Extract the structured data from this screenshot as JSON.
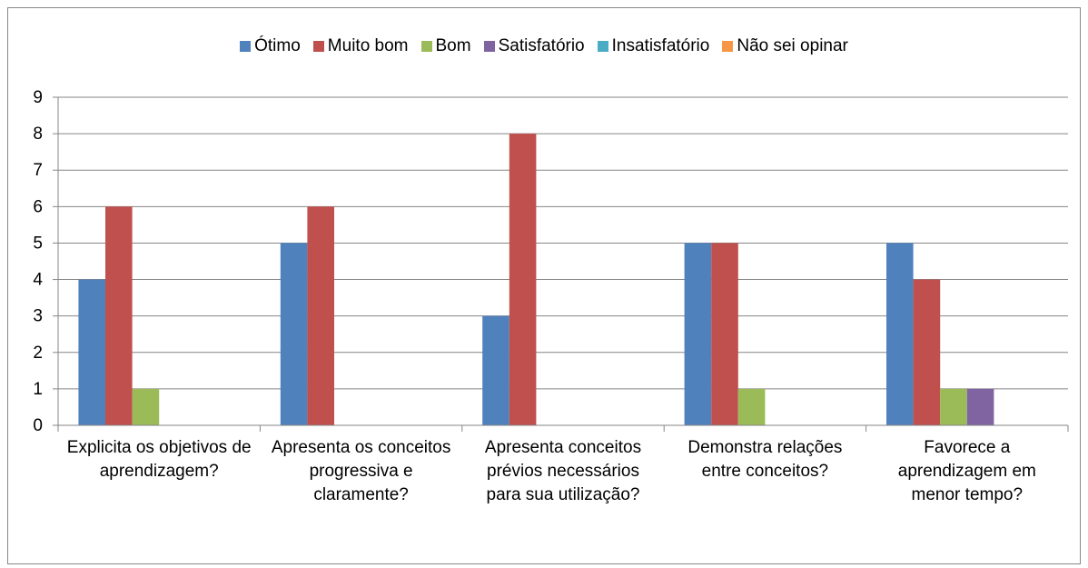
{
  "chart_data": {
    "type": "bar",
    "categories": [
      "Explicita os objetivos de aprendizagem?",
      "Apresenta os conceitos progressiva e claramente?",
      "Apresenta conceitos prévios necessários para sua utilização?",
      "Demonstra relações entre conceitos?",
      "Favorece a aprendizagem em menor tempo?"
    ],
    "series": [
      {
        "name": "Ótimo",
        "color": "#4f81bd",
        "values": [
          4,
          5,
          3,
          5,
          5
        ]
      },
      {
        "name": "Muito bom",
        "color": "#c0504d",
        "values": [
          6,
          6,
          8,
          5,
          4
        ]
      },
      {
        "name": "Bom",
        "color": "#9bbb59",
        "values": [
          1,
          0,
          0,
          1,
          1
        ]
      },
      {
        "name": "Satisfatório",
        "color": "#8064a2",
        "values": [
          0,
          0,
          0,
          0,
          1
        ]
      },
      {
        "name": "Insatisfatório",
        "color": "#4bacc6",
        "values": [
          0,
          0,
          0,
          0,
          0
        ]
      },
      {
        "name": "Não sei opinar",
        "color": "#f79646",
        "values": [
          0,
          0,
          0,
          0,
          0
        ]
      }
    ],
    "ylim": [
      0,
      9
    ],
    "yticks": [
      0,
      1,
      2,
      3,
      4,
      5,
      6,
      7,
      8,
      9
    ],
    "grid": true,
    "legend": "top"
  }
}
